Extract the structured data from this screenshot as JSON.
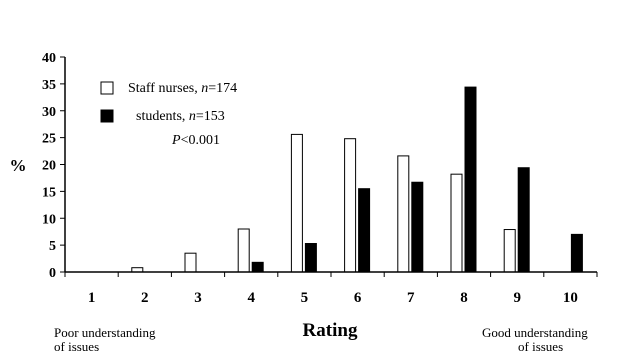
{
  "chart_data": {
    "type": "bar",
    "categories": [
      "1",
      "2",
      "3",
      "4",
      "5",
      "6",
      "7",
      "8",
      "9",
      "10"
    ],
    "series": [
      {
        "name": "Staff nurses, n=174",
        "label_main": "Staff nurses, ",
        "label_n": "n",
        "label_rest": "=174",
        "color": "#ffffff",
        "values": [
          0,
          0.8,
          3.5,
          8,
          25.6,
          24.8,
          21.6,
          18.2,
          7.9,
          0
        ]
      },
      {
        "name": "students, n=153",
        "label_main": "students, ",
        "label_n": "n",
        "label_rest": "=153",
        "color": "#000000",
        "values": [
          0,
          0,
          0,
          1.8,
          5.3,
          15.5,
          16.7,
          34.4,
          19.4,
          7
        ]
      }
    ],
    "title": "",
    "xlabel": "Rating",
    "ylabel": "%",
    "ylim": [
      0,
      40
    ],
    "yticks": [
      "0",
      "5",
      "10",
      "15",
      "20",
      "25",
      "30",
      "35",
      "40"
    ],
    "annotation": {
      "p_italic": "P",
      "p_rest": "<0.001"
    },
    "left_note": [
      "Poor understanding",
      "of issues"
    ],
    "right_note": [
      "Good understanding",
      "of issues"
    ],
    "legend_position": "top-left",
    "grid": false
  }
}
